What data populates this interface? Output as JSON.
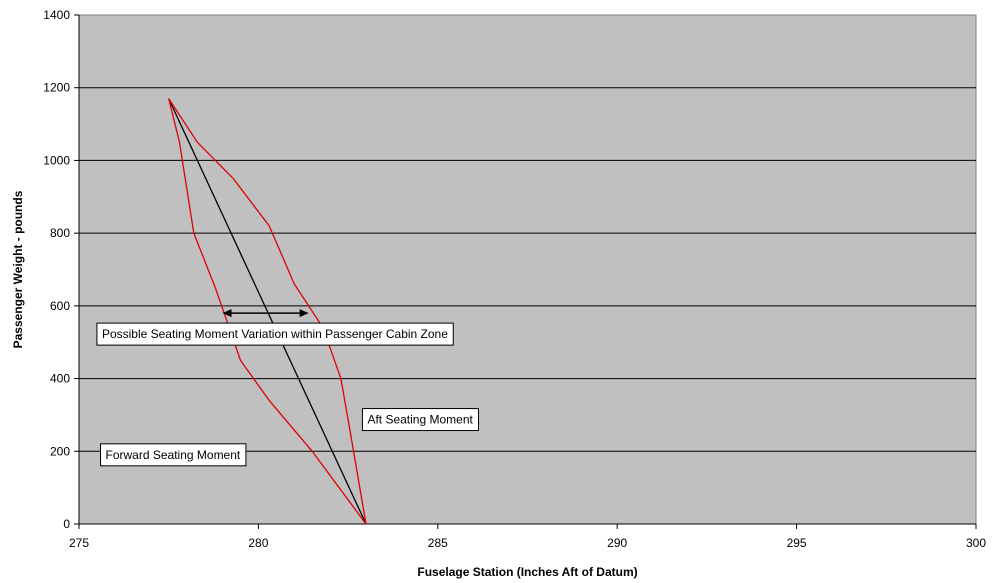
{
  "chart_data": {
    "type": "line",
    "xlabel": "Fuselage Station (Inches Aft of Datum)",
    "ylabel": "Passenger Weight - pounds",
    "xlim": [
      275,
      300
    ],
    "ylim": [
      0,
      1400
    ],
    "xticks": [
      275,
      280,
      285,
      290,
      295,
      300
    ],
    "yticks": [
      0,
      200,
      400,
      600,
      800,
      1000,
      1200,
      1400
    ],
    "grid": "horizontal",
    "plot_background": "#c0c0c0",
    "series": [
      {
        "color": "#000000",
        "points": [
          [
            277.5,
            1170
          ],
          [
            283.0,
            0
          ]
        ]
      },
      {
        "color": "#e00000",
        "points": [
          [
            277.5,
            1170
          ],
          [
            277.8,
            1050
          ],
          [
            278.2,
            800
          ],
          [
            278.8,
            650
          ],
          [
            279.5,
            450
          ],
          [
            280.3,
            340
          ],
          [
            281.5,
            200
          ],
          [
            283.0,
            0
          ]
        ]
      },
      {
        "color": "#e00000",
        "points": [
          [
            277.5,
            1170
          ],
          [
            278.3,
            1050
          ],
          [
            279.3,
            950
          ],
          [
            280.3,
            820
          ],
          [
            281.0,
            660
          ],
          [
            281.8,
            540
          ],
          [
            282.3,
            400
          ],
          [
            282.6,
            230
          ],
          [
            283.0,
            0
          ]
        ]
      }
    ],
    "arrow": {
      "from": [
        279.0,
        580
      ],
      "to": [
        281.4,
        580
      ]
    },
    "annotations": [
      {
        "text": "Possible Seating Moment Variation within Passenger Cabin Zone",
        "x": 275.5,
        "y": 520
      },
      {
        "text": "Aft Seating Moment",
        "x": 282.9,
        "y": 285
      },
      {
        "text": "Forward Seating Moment",
        "x": 275.6,
        "y": 188
      }
    ]
  }
}
